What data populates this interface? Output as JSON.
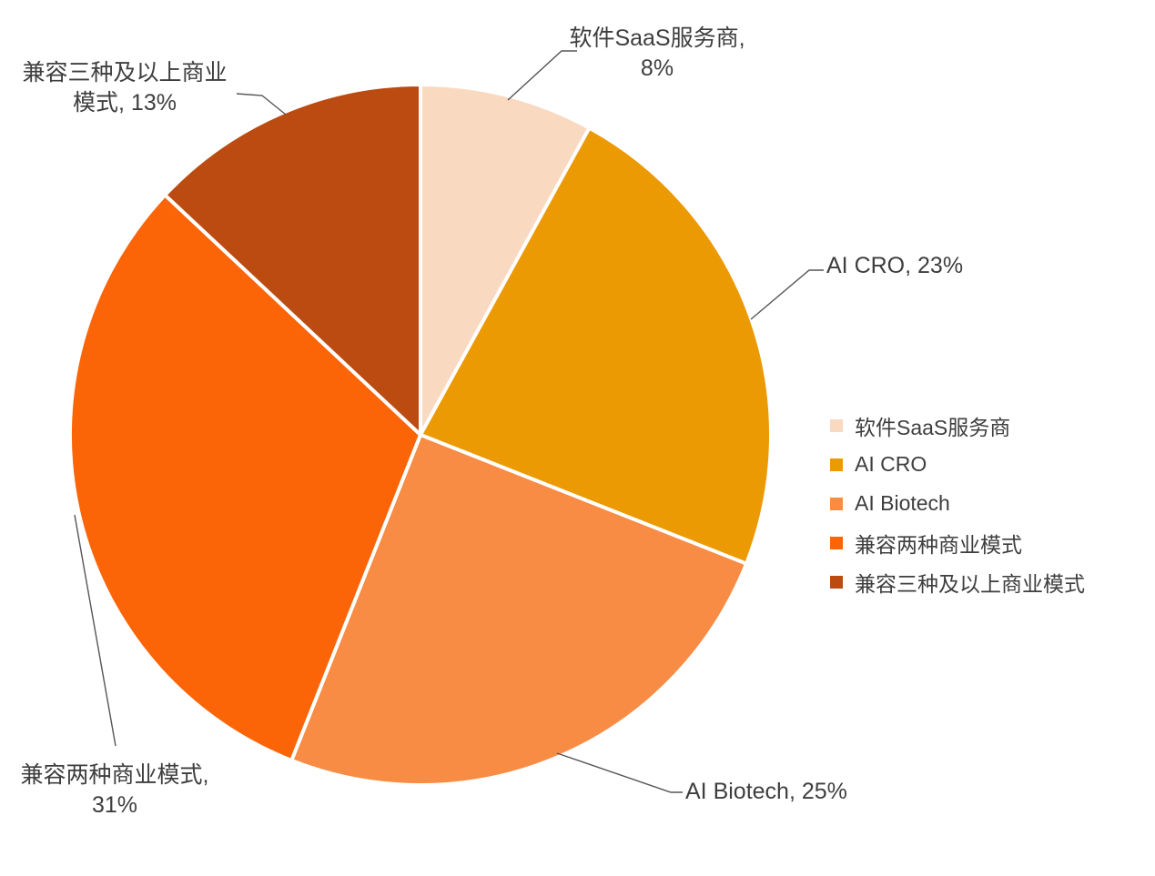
{
  "chart_data": {
    "type": "pie",
    "title": "",
    "categories": [
      "软件SaaS服务商",
      "AI CRO",
      "AI Biotech",
      "兼容两种商业模式",
      "兼容三种及以上商业模式"
    ],
    "values": [
      8,
      23,
      25,
      31,
      13
    ],
    "colors": [
      "#FAD9C1",
      "#EC9A04",
      "#F98C44",
      "#FC6507",
      "#BC4B12"
    ],
    "units": "%",
    "start_angle_deg": 0,
    "direction": "clockwise",
    "legend_position": "right",
    "slice_border_color": "#FFFFFF",
    "leader_line_color": "#555555",
    "data_labels": [
      {
        "line1": "软件SaaS服务商,",
        "line2": "8%"
      },
      {
        "line1": "AI CRO, 23%",
        "line2": ""
      },
      {
        "line1": "AI Biotech, 25%",
        "line2": ""
      },
      {
        "line1": "兼容两种商业模式,",
        "line2": "31%"
      },
      {
        "line1": "兼容三种及以上商业",
        "line2": "模式, 13%"
      }
    ]
  },
  "legend": {
    "items": [
      {
        "label": "软件SaaS服务商",
        "color": "#FAD9C1"
      },
      {
        "label": "AI CRO",
        "color": "#EC9A04"
      },
      {
        "label": "AI Biotech",
        "color": "#F98C44"
      },
      {
        "label": "兼容两种商业模式",
        "color": "#FC6507"
      },
      {
        "label": "兼容三种及以上商业模式",
        "color": "#BC4B12"
      }
    ]
  },
  "text_color": "#3E3E3E"
}
